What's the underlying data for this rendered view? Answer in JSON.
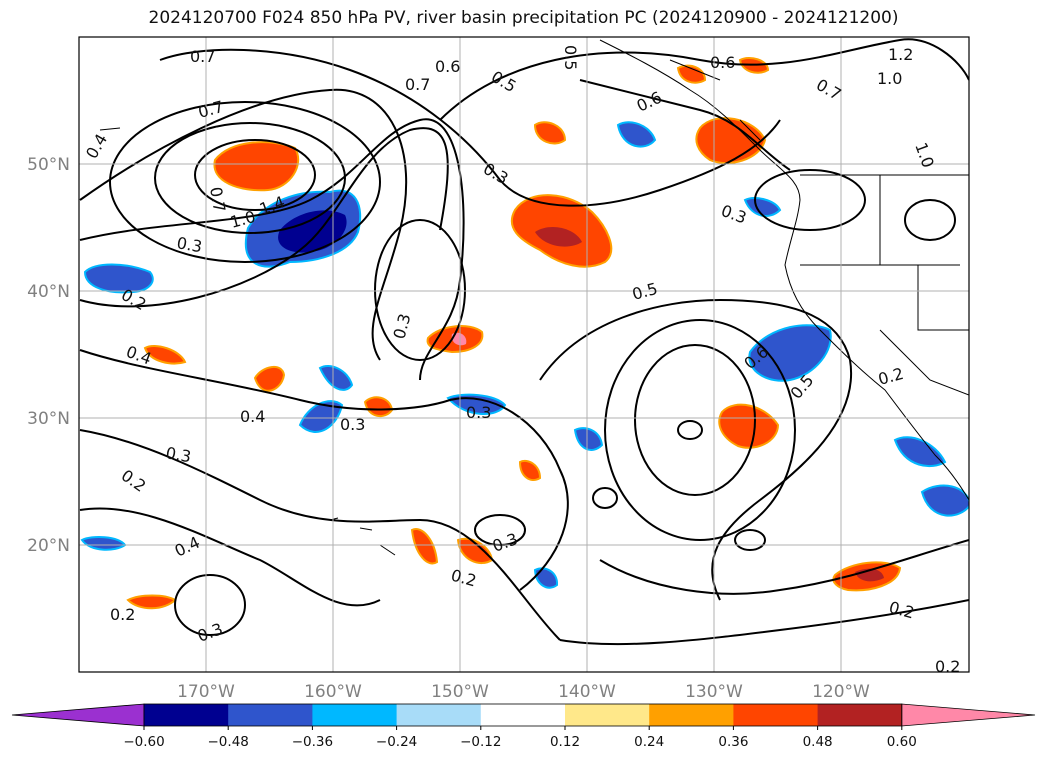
{
  "title": "2024120700 F024 850 hPa PV, river basin precipitation PC (2024120900 - 2024121200)",
  "map": {
    "lat_labels": [
      "50°N",
      "40°N",
      "30°N",
      "20°N"
    ],
    "lon_labels": [
      "170°W",
      "160°W",
      "150°W",
      "140°W",
      "130°W",
      "120°W"
    ],
    "contour_labels": [
      "0.7",
      "0.6",
      "0.5",
      "0.5",
      "0.6",
      "1.2",
      "1.0",
      "0.7",
      "0.6",
      "0.4",
      "0.7",
      "0.3",
      "1.0",
      "1.4",
      "0.3",
      "0.3",
      "0.2",
      "0.5",
      "0.3",
      "0.4",
      "0.6",
      "0.5",
      "0.2",
      "0.4",
      "0.3",
      "0.3",
      "0.3",
      "0.2",
      "0.4",
      "0.3",
      "0.2",
      "0.2",
      "0.3",
      "0.2",
      "0.2",
      "1.0",
      "0.7",
      "0.7"
    ],
    "colors": {
      "grid": "#b0b0b0",
      "coast": "#000000",
      "contour": "#000000"
    }
  },
  "colorbar": {
    "ticks": [
      "−0.60",
      "−0.48",
      "−0.36",
      "−0.24",
      "−0.12",
      "0.12",
      "0.24",
      "0.36",
      "0.48",
      "0.60"
    ],
    "colors": [
      "#9b30d0",
      "#000090",
      "#2f55cc",
      "#00b8ff",
      "#a8dcf8",
      "#ffffff",
      "#ffe88a",
      "#ffa000",
      "#ff4500",
      "#b22222",
      "#ff88a8"
    ],
    "extend": "both"
  }
}
